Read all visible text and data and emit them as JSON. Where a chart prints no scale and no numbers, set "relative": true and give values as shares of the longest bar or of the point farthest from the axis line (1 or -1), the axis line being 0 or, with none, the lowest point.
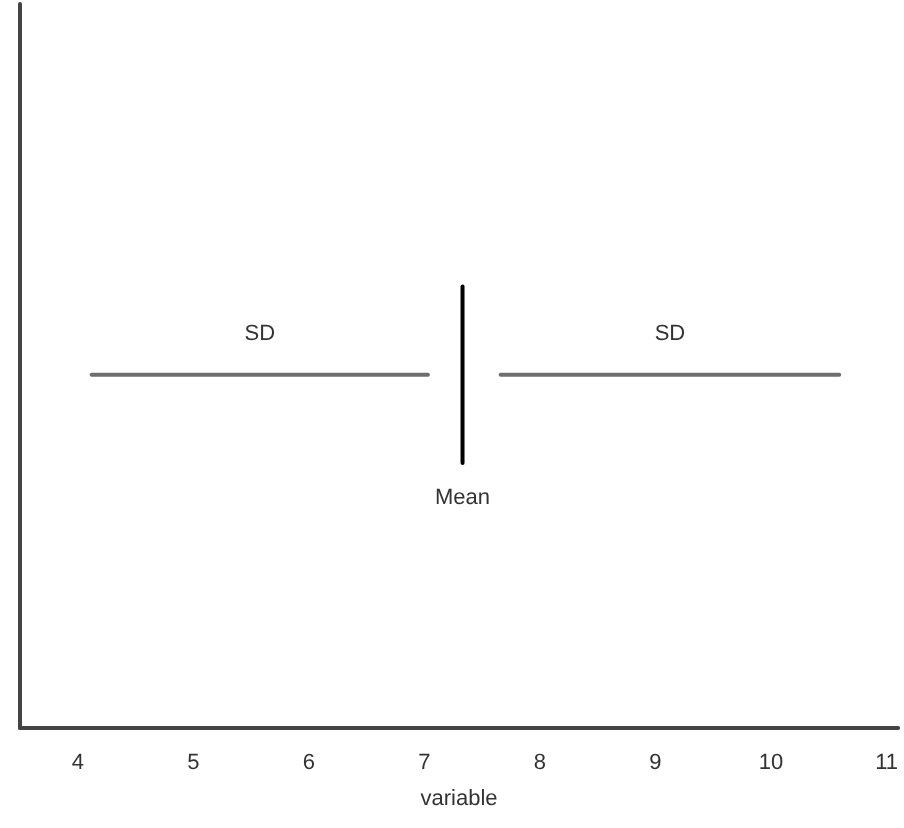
{
  "chart_data": {
    "type": "line",
    "relative": true,
    "xlabel": "variable",
    "xlim": [
      3.5,
      11.1
    ],
    "xticks": [
      4,
      5,
      6,
      7,
      8,
      9,
      10,
      11
    ],
    "tick_labels": "x",
    "grid": false,
    "legend": false,
    "marker": "none",
    "line_style": "solid",
    "series": [
      {
        "name": "SD",
        "color": "#6e6e6e",
        "x": [
          4.12,
          7.03
        ],
        "values": [
          0.8,
          0.8
        ]
      },
      {
        "name": "SD",
        "color": "#6e6e6e",
        "x": [
          7.66,
          10.59
        ],
        "values": [
          0.8,
          0.8
        ]
      },
      {
        "name": "Mean",
        "color": "#000000",
        "x": [
          7.33,
          7.33
        ],
        "values": [
          1,
          0.6
        ]
      }
    ]
  }
}
